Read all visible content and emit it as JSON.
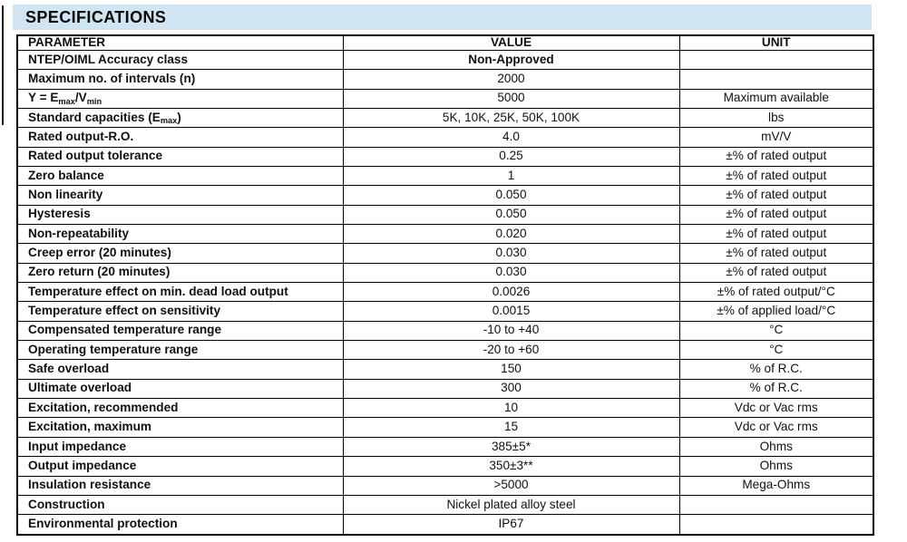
{
  "page": {
    "title": "SPECIFICATIONS"
  },
  "theme": {
    "title_band_color": "#d0e4f2",
    "border_color": "#000000",
    "text_color": "#111111"
  },
  "table": {
    "columns": [
      "PARAMETER",
      "VALUE",
      "UNIT"
    ],
    "rows": [
      {
        "parameter": "NTEP/OIML Accuracy class",
        "value": "Non-Approved",
        "unit": "",
        "value_bold": true
      },
      {
        "parameter": "Maximum no. of intervals (n)",
        "value": "2000",
        "unit": ""
      },
      {
        "parameter": "Y = E_{max}/V_{min}",
        "value": "5000",
        "unit": "Maximum available"
      },
      {
        "parameter": "Standard capacities (E_{max})",
        "value": "5K, 10K, 25K, 50K, 100K",
        "unit": "lbs"
      },
      {
        "parameter": "Rated output-R.O.",
        "value": "4.0",
        "unit": "mV/V"
      },
      {
        "parameter": "Rated output tolerance",
        "value": "0.25",
        "unit": "±% of rated output"
      },
      {
        "parameter": "Zero balance",
        "value": "1",
        "unit": "±% of rated output"
      },
      {
        "parameter": "Non linearity",
        "value": "0.050",
        "unit": "±% of rated output"
      },
      {
        "parameter": "Hysteresis",
        "value": "0.050",
        "unit": "±% of rated output"
      },
      {
        "parameter": "Non-repeatability",
        "value": "0.020",
        "unit": "±% of rated output"
      },
      {
        "parameter": "Creep error (20 minutes)",
        "value": "0.030",
        "unit": "±% of rated output"
      },
      {
        "parameter": "Zero return (20 minutes)",
        "value": "0.030",
        "unit": "±% of rated output"
      },
      {
        "parameter": "Temperature effect on min. dead load output",
        "value": "0.0026",
        "unit": "±% of rated output/°C"
      },
      {
        "parameter": "Temperature effect on sensitivity",
        "value": "0.0015",
        "unit": "±% of applied load/°C"
      },
      {
        "parameter": "Compensated temperature range",
        "value": "-10 to +40",
        "unit": "°C"
      },
      {
        "parameter": "Operating temperature range",
        "value": "-20 to +60",
        "unit": "°C"
      },
      {
        "parameter": "Safe overload",
        "value": "150",
        "unit": "% of R.C."
      },
      {
        "parameter": "Ultimate overload",
        "value": "300",
        "unit": "% of R.C."
      },
      {
        "parameter": "Excitation, recommended",
        "value": "10",
        "unit": "Vdc or Vac rms"
      },
      {
        "parameter": "Excitation, maximum",
        "value": "15",
        "unit": "Vdc or Vac rms"
      },
      {
        "parameter": "Input impedance",
        "value": "385±5*",
        "unit": "Ohms"
      },
      {
        "parameter": "Output impedance",
        "value": "350±3**",
        "unit": "Ohms"
      },
      {
        "parameter": "Insulation resistance",
        "value": "&gt;5000",
        "unit": "Mega-Ohms"
      },
      {
        "parameter": "Construction",
        "value": "Nickel plated alloy steel",
        "unit": ""
      },
      {
        "parameter": "Environmental protection",
        "value": "IP67",
        "unit": ""
      }
    ]
  }
}
